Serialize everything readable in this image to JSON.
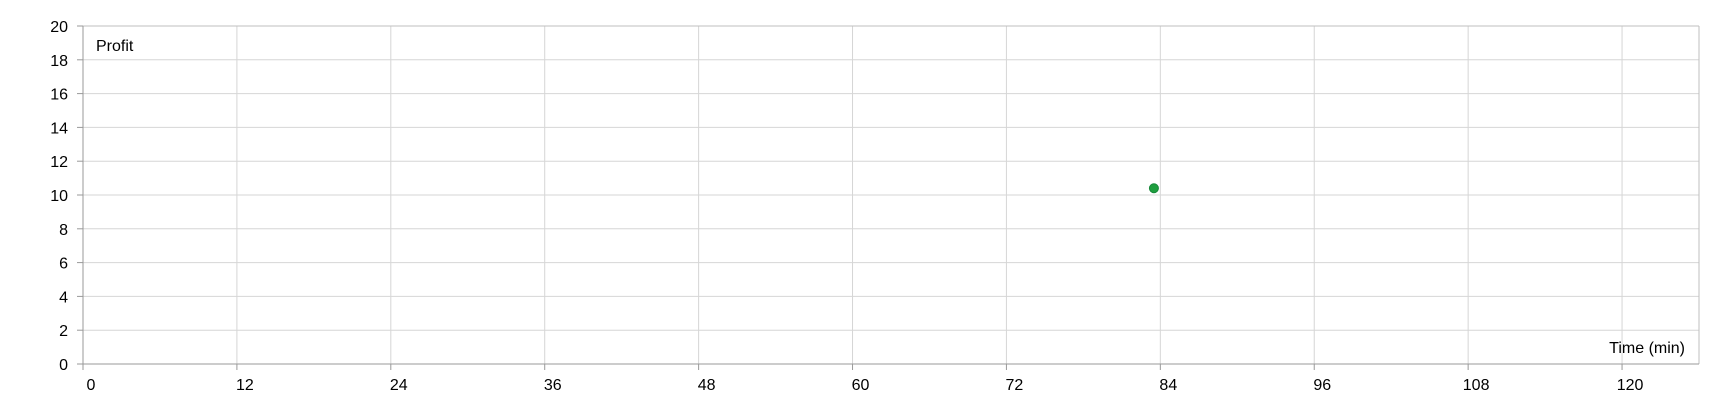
{
  "chart_data": {
    "type": "scatter",
    "title": "",
    "xlabel": "Time (min)",
    "ylabel": "Profit",
    "xlim": [
      0,
      126
    ],
    "ylim": [
      0,
      20
    ],
    "x_ticks": [
      0,
      12,
      24,
      36,
      48,
      60,
      72,
      84,
      96,
      108,
      120
    ],
    "y_ticks": [
      0,
      2,
      4,
      6,
      8,
      10,
      12,
      14,
      16,
      18,
      20
    ],
    "grid": true,
    "series": [
      {
        "color": "#1e9e3e",
        "points": [
          {
            "x": 83.5,
            "y": 10.4
          }
        ]
      }
    ]
  }
}
